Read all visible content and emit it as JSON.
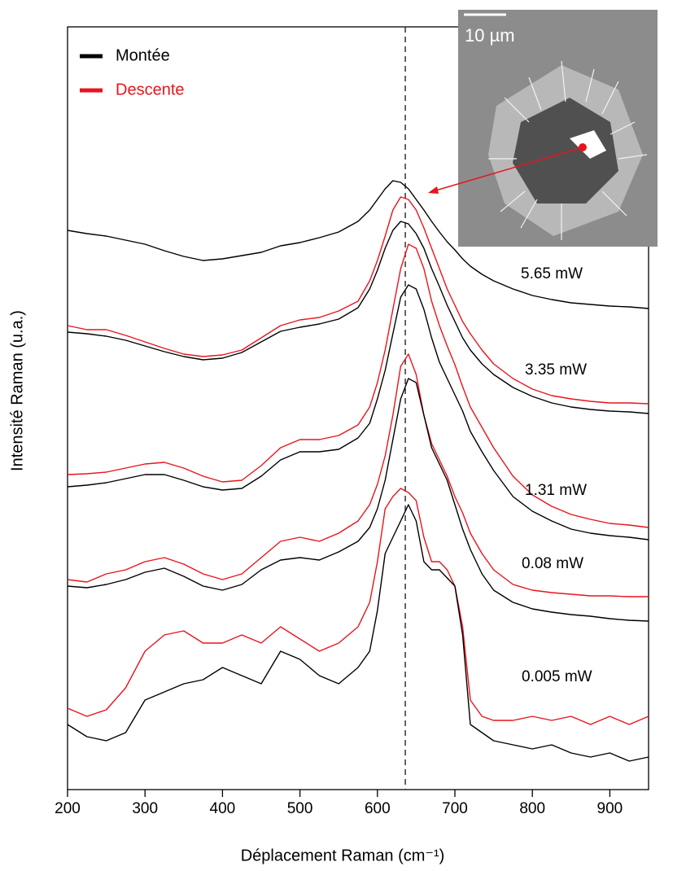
{
  "chart_data": {
    "type": "line",
    "x_label": "Déplacement Raman (cm⁻¹)",
    "y_label": "Intensité Raman (u.a.)",
    "x": [
      200,
      225,
      250,
      275,
      300,
      325,
      350,
      375,
      400,
      425,
      450,
      475,
      500,
      525,
      550,
      575,
      590,
      600,
      610,
      620,
      630,
      640,
      650,
      660,
      670,
      680,
      690,
      700,
      710,
      720,
      735,
      750,
      775,
      800,
      825,
      850,
      875,
      900,
      925,
      950
    ],
    "series": [
      {
        "name": "Montée",
        "color": "#000000",
        "values": [
          687,
          683,
          680,
          675,
          670,
          662,
          655,
          650,
          652,
          656,
          660,
          668,
          672,
          678,
          685,
          698,
          712,
          725,
          738,
          748,
          746,
          738,
          725,
          712,
          698,
          685,
          673,
          663,
          652,
          643,
          633,
          625,
          615,
          607,
          602,
          598,
          596,
          594,
          593,
          591
        ]
      },
      {
        "name": "Descente",
        "color": "#e8141c",
        "values": [
          570,
          565,
          565,
          558,
          550,
          542,
          535,
          532,
          534,
          540,
          555,
          570,
          577,
          580,
          588,
          600,
          625,
          650,
          680,
          712,
          728,
          725,
          712,
          690,
          665,
          640,
          615,
          595,
          575,
          560,
          540,
          523,
          505,
          492,
          484,
          480,
          477,
          475,
          475,
          474
        ]
      },
      {
        "name": "Montée",
        "color": "#000000",
        "values": [
          562,
          560,
          557,
          552,
          545,
          538,
          532,
          528,
          530,
          537,
          550,
          563,
          568,
          572,
          578,
          592,
          615,
          638,
          665,
          687,
          698,
          695,
          683,
          665,
          640,
          618,
          595,
          575,
          555,
          540,
          523,
          510,
          494,
          483,
          475,
          470,
          467,
          465,
          464,
          462
        ]
      },
      {
        "name": "Descente",
        "color": "#e8141c",
        "values": [
          387,
          388,
          390,
          395,
          400,
          402,
          395,
          385,
          378,
          380,
          398,
          420,
          430,
          430,
          435,
          448,
          470,
          500,
          540,
          590,
          640,
          670,
          665,
          640,
          600,
          570,
          545,
          522,
          495,
          470,
          445,
          420,
          385,
          362,
          348,
          338,
          332,
          327,
          325,
          322
        ]
      },
      {
        "name": "Montée",
        "color": "#000000",
        "values": [
          372,
          374,
          377,
          382,
          387,
          387,
          380,
          372,
          368,
          370,
          385,
          405,
          415,
          415,
          418,
          432,
          450,
          480,
          515,
          560,
          605,
          620,
          615,
          590,
          555,
          525,
          505,
          485,
          465,
          440,
          415,
          392,
          360,
          342,
          330,
          320,
          315,
          312,
          310,
          307
        ]
      },
      {
        "name": "Descente",
        "color": "#e8141c",
        "values": [
          258,
          255,
          265,
          270,
          280,
          285,
          277,
          265,
          258,
          265,
          285,
          305,
          310,
          305,
          315,
          330,
          350,
          375,
          410,
          460,
          520,
          535,
          510,
          460,
          425,
          405,
          385,
          360,
          340,
          315,
          290,
          270,
          252,
          245,
          242,
          240,
          238,
          238,
          237,
          237
        ]
      },
      {
        "name": "Montée",
        "color": "#000000",
        "values": [
          250,
          248,
          252,
          258,
          267,
          272,
          262,
          250,
          245,
          252,
          270,
          282,
          285,
          282,
          292,
          305,
          322,
          345,
          380,
          430,
          480,
          505,
          500,
          460,
          420,
          400,
          380,
          350,
          320,
          295,
          265,
          245,
          230,
          222,
          218,
          215,
          213,
          210,
          208,
          207
        ]
      },
      {
        "name": "Descente",
        "color": "#e8141c",
        "values": [
          100,
          90,
          98,
          125,
          170,
          190,
          195,
          180,
          180,
          190,
          180,
          200,
          185,
          170,
          180,
          200,
          230,
          280,
          345,
          360,
          370,
          365,
          355,
          310,
          280,
          280,
          270,
          250,
          200,
          110,
          90,
          85,
          85,
          90,
          85,
          90,
          80,
          90,
          80,
          90
        ]
      },
      {
        "name": "Montée",
        "color": "#000000",
        "values": [
          80,
          65,
          60,
          70,
          110,
          120,
          130,
          135,
          150,
          140,
          130,
          170,
          160,
          140,
          130,
          150,
          170,
          220,
          290,
          310,
          330,
          350,
          330,
          280,
          270,
          270,
          260,
          250,
          190,
          80,
          70,
          60,
          55,
          50,
          55,
          45,
          40,
          45,
          35,
          40
        ]
      }
    ],
    "annotations": [
      {
        "text": "5.65 mW"
      },
      {
        "text": "3.35 mW"
      },
      {
        "text": "1.31 mW"
      },
      {
        "text": "0.08 mW"
      },
      {
        "text": "0.005 mW"
      }
    ],
    "reference_line": 636,
    "xlim": [
      200,
      950
    ],
    "xticks": [
      200,
      300,
      400,
      500,
      600,
      700,
      800,
      900
    ],
    "ylim": [
      0,
      937
    ]
  },
  "inset": {
    "scale_label": "10 µm"
  }
}
